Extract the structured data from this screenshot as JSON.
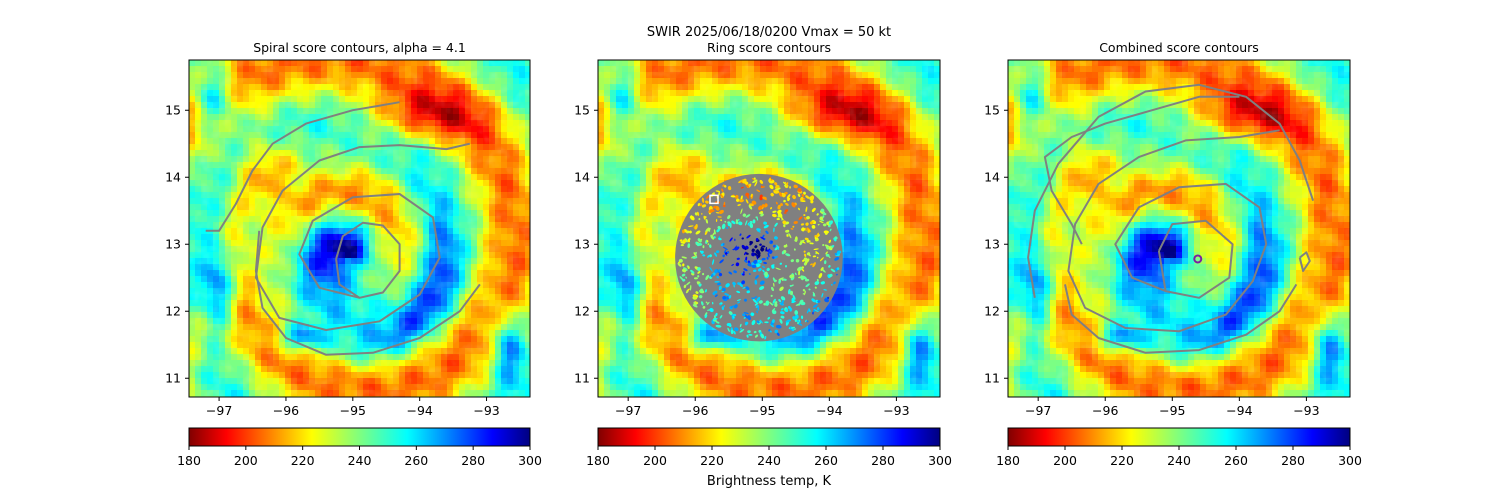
{
  "figure": {
    "suptitle_line1": "SWIR  2025/06/18/0200    Vmax = 50 kt"
  },
  "colorbar": {
    "colormap": "jet",
    "ticks": [
      "180",
      "200",
      "220",
      "240",
      "260",
      "280",
      "300"
    ],
    "label": "Brightness temp, K"
  },
  "chart_data": [
    {
      "type": "heatmap",
      "title": "Spiral score contours, alpha =  4.1",
      "xlim": [
        -97.45,
        -92.35
      ],
      "ylim": [
        10.72,
        15.75
      ],
      "xticks": [
        -97,
        -96,
        -95,
        -94,
        -93
      ],
      "yticks": [
        11,
        12,
        13,
        14,
        15
      ],
      "xtick_labels": [
        "−97",
        "−96",
        "−95",
        "−94",
        "−93"
      ],
      "ytick_labels": [
        "11",
        "12",
        "13",
        "14",
        "15"
      ],
      "colorbar_range": [
        180,
        300
      ],
      "contour_color": "#808080",
      "contours": [
        [
          [
            -95.25,
            12.78
          ],
          [
            -95.15,
            13.12
          ],
          [
            -94.85,
            13.32
          ],
          [
            -94.55,
            13.28
          ],
          [
            -94.3,
            13.0
          ],
          [
            -94.3,
            12.6
          ],
          [
            -94.55,
            12.28
          ],
          [
            -94.9,
            12.2
          ],
          [
            -95.2,
            12.4
          ],
          [
            -95.25,
            12.78
          ]
        ],
        [
          [
            -94.9,
            12.2
          ],
          [
            -95.5,
            12.35
          ],
          [
            -95.8,
            12.85
          ],
          [
            -95.6,
            13.35
          ],
          [
            -95.0,
            13.7
          ],
          [
            -94.3,
            13.75
          ],
          [
            -93.8,
            13.4
          ],
          [
            -93.7,
            12.8
          ],
          [
            -94.0,
            12.25
          ],
          [
            -94.6,
            11.85
          ],
          [
            -95.4,
            11.72
          ],
          [
            -96.1,
            11.9
          ],
          [
            -96.45,
            12.5
          ],
          [
            -96.35,
            13.25
          ],
          [
            -96.05,
            13.8
          ],
          [
            -95.5,
            14.25
          ],
          [
            -94.9,
            14.45
          ],
          [
            -94.3,
            14.48
          ],
          [
            -93.6,
            14.42
          ],
          [
            -93.25,
            14.5
          ]
        ],
        [
          [
            -96.4,
            13.2
          ],
          [
            -96.45,
            12.6
          ],
          [
            -96.35,
            12.05
          ],
          [
            -96.0,
            11.6
          ],
          [
            -95.4,
            11.35
          ],
          [
            -94.7,
            11.38
          ],
          [
            -94.0,
            11.6
          ],
          [
            -93.4,
            12.0
          ],
          [
            -93.1,
            12.4
          ]
        ],
        [
          [
            -97.2,
            13.2
          ],
          [
            -97.0,
            13.2
          ],
          [
            -96.75,
            13.6
          ],
          [
            -96.5,
            14.1
          ],
          [
            -96.2,
            14.5
          ],
          [
            -95.7,
            14.8
          ],
          [
            -95.0,
            15.0
          ],
          [
            -94.3,
            15.12
          ]
        ]
      ],
      "markers": []
    },
    {
      "type": "heatmap",
      "title": "Ring score contours",
      "xlim": [
        -97.45,
        -92.35
      ],
      "ylim": [
        10.72,
        15.75
      ],
      "xticks": [
        -97,
        -96,
        -95,
        -94,
        -93
      ],
      "yticks": [
        11,
        12,
        13,
        14,
        15
      ],
      "xtick_labels": [
        "−97",
        "−96",
        "−95",
        "−94",
        "−93"
      ],
      "ytick_labels": [
        "11",
        "12",
        "13",
        "14",
        "15"
      ],
      "colorbar_range": [
        180,
        300
      ],
      "ring_region": {
        "center": [
          -95.05,
          12.8
        ],
        "radius_deg": 1.25,
        "color": "#808080"
      },
      "markers": [
        {
          "shape": "square",
          "lon": -95.72,
          "lat": 13.67,
          "color": "#ffffff"
        }
      ]
    },
    {
      "type": "heatmap",
      "title": "Combined score contours",
      "xlim": [
        -97.45,
        -92.35
      ],
      "ylim": [
        10.72,
        15.75
      ],
      "xticks": [
        -97,
        -96,
        -95,
        -94,
        -93
      ],
      "yticks": [
        11,
        12,
        13,
        14,
        15
      ],
      "xtick_labels": [
        "−97",
        "−96",
        "−95",
        "−94",
        "−93"
      ],
      "ytick_labels": [
        "11",
        "12",
        "13",
        "14",
        "15"
      ],
      "colorbar_range": [
        180,
        300
      ],
      "contour_color": "#808080",
      "contours": [
        [
          [
            -95.2,
            12.9
          ],
          [
            -95.0,
            13.3
          ],
          [
            -94.5,
            13.35
          ],
          [
            -94.1,
            13.0
          ],
          [
            -94.15,
            12.5
          ],
          [
            -94.6,
            12.2
          ],
          [
            -95.1,
            12.3
          ],
          [
            -95.2,
            12.9
          ]
        ],
        [
          [
            -95.1,
            12.3
          ],
          [
            -95.6,
            12.5
          ],
          [
            -95.85,
            13.0
          ],
          [
            -95.5,
            13.55
          ],
          [
            -94.9,
            13.85
          ],
          [
            -94.2,
            13.9
          ],
          [
            -93.7,
            13.55
          ],
          [
            -93.6,
            13.0
          ],
          [
            -93.8,
            12.45
          ],
          [
            -94.2,
            11.95
          ],
          [
            -94.9,
            11.7
          ],
          [
            -95.7,
            11.75
          ],
          [
            -96.3,
            12.05
          ],
          [
            -96.55,
            12.6
          ],
          [
            -96.45,
            13.3
          ],
          [
            -96.1,
            13.9
          ],
          [
            -95.5,
            14.3
          ],
          [
            -94.8,
            14.55
          ],
          [
            -94.0,
            14.6
          ],
          [
            -93.4,
            14.7
          ]
        ],
        [
          [
            -96.6,
            12.4
          ],
          [
            -96.5,
            11.95
          ],
          [
            -96.1,
            11.6
          ],
          [
            -95.4,
            11.38
          ],
          [
            -94.6,
            11.42
          ],
          [
            -93.9,
            11.65
          ],
          [
            -93.4,
            12.0
          ],
          [
            -93.15,
            12.4
          ]
        ],
        [
          [
            -96.35,
            13.0
          ],
          [
            -96.5,
            13.3
          ],
          [
            -96.8,
            13.8
          ],
          [
            -96.9,
            14.3
          ],
          [
            -96.5,
            14.6
          ],
          [
            -96.0,
            14.8
          ],
          [
            -95.3,
            15.0
          ],
          [
            -94.6,
            15.2
          ],
          [
            -94.0,
            15.2
          ]
        ],
        [
          [
            -97.05,
            12.2
          ],
          [
            -97.15,
            12.8
          ],
          [
            -97.05,
            13.5
          ],
          [
            -96.7,
            14.2
          ],
          [
            -96.1,
            14.9
          ],
          [
            -95.4,
            15.28
          ],
          [
            -94.6,
            15.38
          ],
          [
            -93.9,
            15.2
          ],
          [
            -93.4,
            14.8
          ],
          [
            -93.1,
            14.25
          ],
          [
            -92.9,
            13.65
          ]
        ],
        [
          [
            -93.1,
            12.8
          ],
          [
            -93.05,
            12.6
          ],
          [
            -92.95,
            12.75
          ],
          [
            -93.0,
            12.88
          ],
          [
            -93.1,
            12.8
          ]
        ]
      ],
      "markers": [
        {
          "shape": "circle",
          "lon": -94.62,
          "lat": 12.78,
          "color": "#7a1fa2"
        }
      ]
    }
  ]
}
